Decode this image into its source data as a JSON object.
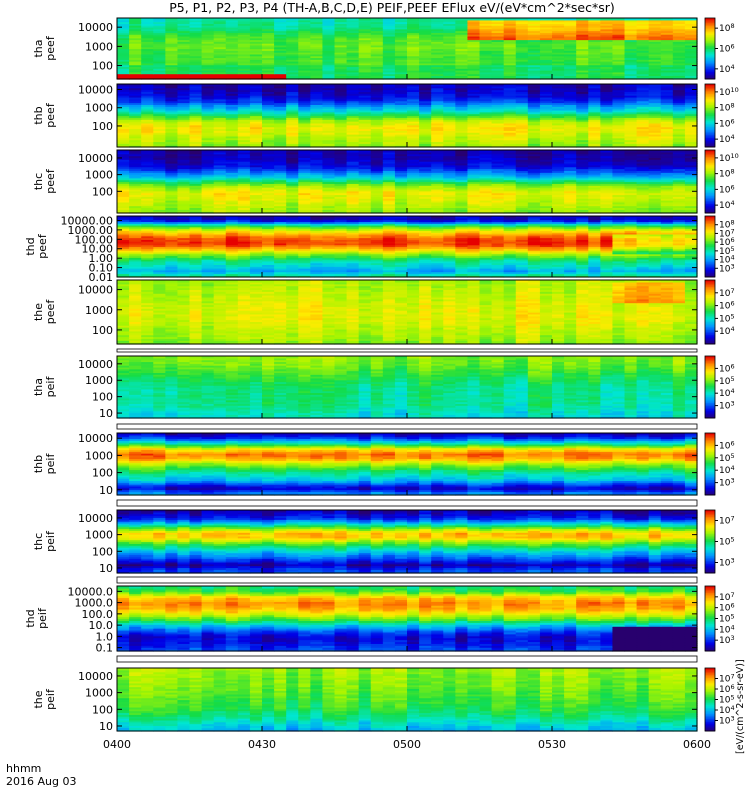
{
  "chart_data": {
    "type": "heatmap",
    "title": "P5, P1, P2, P3, P4 (TH-A,B,C,D,E) PEIF,PEEF EFlux eV/(eV*cm^2*sec*sr)",
    "colorbar_title": "[eV/(cm^2-s-sr-eV)]",
    "x_range": [
      "0400",
      "0600"
    ],
    "x_tick_labels": [
      "0400",
      "0430",
      "0500",
      "0530",
      "0600"
    ],
    "x_label_line1": "hhmm",
    "x_label_line2": "2016 Aug 03",
    "y_scale": "log",
    "grid": false,
    "panels": [
      {
        "label_top": "tha",
        "label_bottom": "peef",
        "y_range": [
          20,
          30000
        ],
        "y_ticks": [
          "10000",
          "1000",
          "100"
        ],
        "cbar_range_exp": [
          3,
          9
        ],
        "cbar_ticks": [
          "10^4",
          "10^6",
          "10^8"
        ],
        "profile": [
          [
            2.0,
            0.5
          ],
          [
            2.1,
            0.55
          ],
          [
            2.5,
            0.55
          ],
          [
            3.0,
            0.58
          ],
          [
            3.5,
            0.55
          ],
          [
            4.0,
            0.45
          ],
          [
            4.48,
            0.42
          ]
        ],
        "features": [
          {
            "from_frac": 0.0,
            "to_frac": 0.3,
            "from_exp": 1.3,
            "to_exp": 1.6,
            "level": 0.72
          },
          {
            "from_frac": 0.6,
            "to_frac": 1.0,
            "from_exp": 3.4,
            "to_exp": 4.4,
            "level": 0.35
          }
        ]
      },
      {
        "label_top": "thb",
        "label_bottom": "peef",
        "y_range": [
          7,
          20000
        ],
        "y_ticks": [
          "10000",
          "1000",
          "100"
        ],
        "cbar_range_exp": [
          3,
          11
        ],
        "cbar_ticks": [
          "10^4",
          "10^6",
          "10^8",
          "10^10"
        ],
        "profile": [
          [
            0.85,
            0.62
          ],
          [
            1.2,
            0.66
          ],
          [
            1.5,
            0.7
          ],
          [
            1.9,
            0.74
          ],
          [
            2.3,
            0.66
          ],
          [
            2.6,
            0.52
          ],
          [
            2.85,
            0.38
          ],
          [
            3.1,
            0.3
          ],
          [
            3.3,
            0.2
          ],
          [
            3.6,
            0.12
          ],
          [
            4.0,
            0.08
          ],
          [
            4.3,
            0.07
          ]
        ],
        "features": []
      },
      {
        "label_top": "thc",
        "label_bottom": "peef",
        "y_range": [
          5,
          30000
        ],
        "y_ticks": [
          "10000",
          "1000",
          "100"
        ],
        "cbar_range_exp": [
          3,
          11
        ],
        "cbar_ticks": [
          "10^4",
          "10^6",
          "10^8",
          "10^10"
        ],
        "profile": [
          [
            0.7,
            0.62
          ],
          [
            1.1,
            0.66
          ],
          [
            1.5,
            0.7
          ],
          [
            1.9,
            0.73
          ],
          [
            2.3,
            0.65
          ],
          [
            2.6,
            0.5
          ],
          [
            2.85,
            0.35
          ],
          [
            3.2,
            0.22
          ],
          [
            3.5,
            0.12
          ],
          [
            4.0,
            0.07
          ],
          [
            4.48,
            0.06
          ]
        ],
        "features": []
      },
      {
        "label_top": "thd",
        "label_bottom": "peef",
        "y_range": [
          0.01,
          30000
        ],
        "y_ticks": [
          "10000.00",
          "1000.00",
          "100.00",
          "10.00",
          "1.00",
          "0.10",
          "0.01"
        ],
        "cbar_range_exp": [
          2,
          9
        ],
        "cbar_ticks": [
          "10^3",
          "10^4",
          "10^5",
          "10^6",
          "10^7",
          "10^8"
        ],
        "profile": [
          [
            -2.0,
            0.5
          ],
          [
            -1.3,
            0.3
          ],
          [
            -0.9,
            0.38
          ],
          [
            -0.3,
            0.45
          ],
          [
            0.1,
            0.55
          ],
          [
            0.5,
            0.65
          ],
          [
            1.0,
            0.82
          ],
          [
            1.5,
            0.95
          ],
          [
            2.0,
            0.95
          ],
          [
            2.5,
            0.86
          ],
          [
            3.0,
            0.72
          ],
          [
            3.5,
            0.5
          ],
          [
            3.85,
            0.22
          ],
          [
            4.1,
            0.1
          ],
          [
            4.48,
            0.08
          ]
        ],
        "features": [
          {
            "from_frac": 0.86,
            "to_frac": 1.0,
            "from_exp": 0.5,
            "to_exp": 2.6,
            "level": -0.18
          }
        ]
      },
      {
        "label_top": "the",
        "label_bottom": "peef",
        "y_range": [
          20,
          30000
        ],
        "y_ticks": [
          "10000",
          "1000",
          "100"
        ],
        "cbar_range_exp": [
          3,
          8
        ],
        "cbar_ticks": [
          "10^4",
          "10^5",
          "10^6",
          "10^7"
        ],
        "profile": [
          [
            1.3,
            0.62
          ],
          [
            1.6,
            0.66
          ],
          [
            2.0,
            0.68
          ],
          [
            2.5,
            0.72
          ],
          [
            3.0,
            0.72
          ],
          [
            3.5,
            0.7
          ],
          [
            4.0,
            0.68
          ],
          [
            4.48,
            0.66
          ]
        ],
        "features": [
          {
            "from_frac": 0.86,
            "to_frac": 0.97,
            "from_exp": 3.4,
            "to_exp": 4.4,
            "level": 0.15
          }
        ]
      },
      {
        "label_top": "tha",
        "label_bottom": "peif",
        "y_range": [
          5,
          30000
        ],
        "y_ticks": [
          "10000",
          "1000",
          "100",
          "10"
        ],
        "cbar_range_exp": [
          2,
          7
        ],
        "cbar_ticks": [
          "10^3",
          "10^4",
          "10^5",
          "10^6"
        ],
        "profile": [
          [
            0.7,
            0.38
          ],
          [
            1.0,
            0.4
          ],
          [
            1.5,
            0.45
          ],
          [
            2.0,
            0.46
          ],
          [
            2.5,
            0.46
          ],
          [
            3.0,
            0.5
          ],
          [
            3.5,
            0.55
          ],
          [
            4.0,
            0.6
          ],
          [
            4.48,
            0.62
          ]
        ],
        "features": []
      },
      {
        "label_top": "thb",
        "label_bottom": "peif",
        "y_range": [
          5,
          20000
        ],
        "y_ticks": [
          "10000",
          "1000",
          "100",
          "10"
        ],
        "cbar_range_exp": [
          2,
          7
        ],
        "cbar_ticks": [
          "10^3",
          "10^4",
          "10^5",
          "10^6"
        ],
        "profile": [
          [
            0.7,
            0.3
          ],
          [
            0.9,
            0.22
          ],
          [
            1.1,
            0.08
          ],
          [
            1.3,
            0.18
          ],
          [
            1.6,
            0.35
          ],
          [
            2.0,
            0.45
          ],
          [
            2.5,
            0.65
          ],
          [
            2.85,
            0.85
          ],
          [
            3.1,
            0.9
          ],
          [
            3.4,
            0.75
          ],
          [
            3.7,
            0.45
          ],
          [
            4.0,
            0.2
          ],
          [
            4.3,
            0.06
          ]
        ],
        "features": []
      },
      {
        "label_top": "thc",
        "label_bottom": "peif",
        "y_range": [
          5,
          30000
        ],
        "y_ticks": [
          "10000",
          "1000",
          "100",
          "10"
        ],
        "cbar_range_exp": [
          2,
          8
        ],
        "cbar_ticks": [
          "10^3",
          "10^5",
          "10^7"
        ],
        "profile": [
          [
            0.7,
            0.22
          ],
          [
            1.0,
            0.15
          ],
          [
            1.2,
            0.05
          ],
          [
            1.5,
            0.18
          ],
          [
            2.0,
            0.35
          ],
          [
            2.5,
            0.58
          ],
          [
            2.85,
            0.78
          ],
          [
            3.1,
            0.8
          ],
          [
            3.4,
            0.6
          ],
          [
            3.7,
            0.35
          ],
          [
            4.0,
            0.15
          ],
          [
            4.48,
            0.05
          ]
        ],
        "features": []
      },
      {
        "label_top": "thd",
        "label_bottom": "peif",
        "y_range": [
          0.05,
          30000
        ],
        "y_ticks": [
          "10000.0",
          "1000.0",
          "100.0",
          "10.0",
          "1.0",
          "0.1"
        ],
        "cbar_range_exp": [
          2,
          8
        ],
        "cbar_ticks": [
          "10^3",
          "10^4",
          "10^5",
          "10^6",
          "10^7"
        ],
        "profile": [
          [
            -1.3,
            0.2
          ],
          [
            -0.5,
            0.12
          ],
          [
            0.0,
            0.1
          ],
          [
            0.5,
            0.2
          ],
          [
            1.0,
            0.35
          ],
          [
            1.5,
            0.55
          ],
          [
            2.0,
            0.7
          ],
          [
            2.5,
            0.82
          ],
          [
            3.0,
            0.86
          ],
          [
            3.5,
            0.78
          ],
          [
            4.0,
            0.55
          ],
          [
            4.48,
            0.48
          ]
        ],
        "features": [
          {
            "from_frac": 0.86,
            "to_frac": 1.0,
            "from_exp": -1.3,
            "to_exp": 0.9,
            "level": -0.35
          }
        ]
      },
      {
        "label_top": "the",
        "label_bottom": "peif",
        "y_range": [
          5,
          30000
        ],
        "y_ticks": [
          "10000",
          "1000",
          "100",
          "10"
        ],
        "cbar_range_exp": [
          2,
          8
        ],
        "cbar_ticks": [
          "10^3",
          "10^4",
          "10^5",
          "10^6",
          "10^7"
        ],
        "profile": [
          [
            0.7,
            0.32
          ],
          [
            1.0,
            0.36
          ],
          [
            1.5,
            0.45
          ],
          [
            2.0,
            0.52
          ],
          [
            2.5,
            0.55
          ],
          [
            3.0,
            0.58
          ],
          [
            3.5,
            0.6
          ],
          [
            4.0,
            0.62
          ],
          [
            4.48,
            0.64
          ]
        ],
        "features": []
      }
    ]
  }
}
